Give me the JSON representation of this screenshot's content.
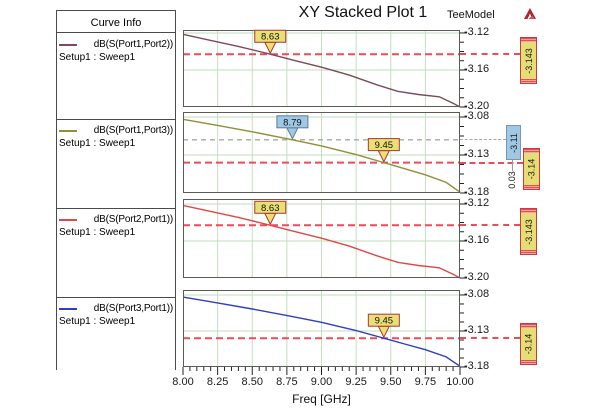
{
  "header": {
    "title": "XY Stacked Plot 1",
    "model_label": "TeeModel",
    "logo_color": "#b2232b"
  },
  "legend": {
    "title": "Curve Info",
    "entries": [
      {
        "label": "dB(S(Port1,Port2))",
        "sublabel": "Setup1 : Sweep1",
        "color": "#7f4a58"
      },
      {
        "label": "dB(S(Port1,Port3))",
        "sublabel": "Setup1 : Sweep1",
        "color": "#90903a"
      },
      {
        "label": "dB(S(Port2,Port1))",
        "sublabel": "Setup1 : Sweep1",
        "color": "#e04848"
      },
      {
        "label": "dB(S(Port3,Port1))",
        "sublabel": "Setup1 : Sweep1",
        "color": "#2e3fc4"
      }
    ]
  },
  "chart_data": {
    "type": "line",
    "title": "XY Stacked Plot 1",
    "xlabel": "Freq [GHz]",
    "x_range": [
      8,
      10
    ],
    "x_ticks": [
      8,
      8.25,
      8.5,
      8.75,
      9,
      9.25,
      9.5,
      9.75,
      10
    ],
    "x_tick_labels": [
      "8.00",
      "8.25",
      "8.50",
      "8.75",
      "9.00",
      "9.25",
      "9.50",
      "9.75",
      "10.00"
    ],
    "x_minor_step": 0.05,
    "grid_on": true,
    "grid_color": "#c2dec2",
    "marker_line_red": "#ee4a5a",
    "marker_line_gray": "#a8a8a8",
    "legend_position": "left",
    "plots": [
      {
        "name": "dB(S(Port1,Port2))",
        "color": "#7f4a58",
        "ylim": [
          -3.1168,
          -3.2
        ],
        "yticks": [
          -3.12,
          -3.16,
          -3.2
        ],
        "ytick_labels": [
          "-3.12",
          "-3.16",
          "-3.20"
        ],
        "x": [
          8.0,
          8.2,
          8.4,
          8.63,
          8.8,
          9.0,
          9.2,
          9.4,
          9.55,
          9.7,
          9.85,
          9.95,
          10.0
        ],
        "y": [
          -3.1215,
          -3.128,
          -3.1345,
          -3.143,
          -3.1495,
          -3.157,
          -3.1655,
          -3.176,
          -3.183,
          -3.1865,
          -3.189,
          -3.196,
          -3.2
        ],
        "markers": [
          {
            "label": "8.63",
            "x": 8.63,
            "y": -3.143,
            "style": "yellow"
          }
        ],
        "hlines": [
          {
            "value": -3.143,
            "style": "red",
            "box_label": "-3.143",
            "box_style": "yellow"
          }
        ]
      },
      {
        "name": "dB(S(Port1,Port3))",
        "color": "#90903a",
        "ylim": [
          -3.0734,
          -3.18
        ],
        "yticks": [
          -3.08,
          -3.13,
          -3.18
        ],
        "ytick_labels": [
          "-3.08",
          "-3.13",
          "-3.18"
        ],
        "x": [
          8.0,
          8.25,
          8.5,
          8.79,
          9.0,
          9.25,
          9.45,
          9.6,
          9.75,
          9.9,
          10.0
        ],
        "y": [
          -3.083,
          -3.091,
          -3.0995,
          -3.11,
          -3.118,
          -3.1295,
          -3.14,
          -3.148,
          -3.156,
          -3.166,
          -3.179
        ],
        "markers": [
          {
            "label": "8.79",
            "x": 8.79,
            "y": -3.11,
            "style": "blue"
          },
          {
            "label": "9.45",
            "x": 9.45,
            "y": -3.14,
            "style": "yellow"
          }
        ],
        "hlines": [
          {
            "value": -3.11,
            "style": "gray",
            "box_label": "-3.11",
            "box_style": "blue"
          },
          {
            "value": -3.14,
            "style": "red",
            "box_label": "-3.14",
            "box_style": "yellow"
          }
        ],
        "delta_label": "0.03"
      },
      {
        "name": "dB(S(Port2,Port1))",
        "color": "#e04848",
        "ylim": [
          -3.1146,
          -3.2
        ],
        "yticks": [
          -3.12,
          -3.16,
          -3.2
        ],
        "ytick_labels": [
          "-3.12",
          "-3.16",
          "-3.20"
        ],
        "x": [
          8.0,
          8.2,
          8.4,
          8.63,
          8.8,
          9.0,
          9.2,
          9.4,
          9.55,
          9.7,
          9.85,
          9.95,
          10.0
        ],
        "y": [
          -3.1215,
          -3.128,
          -3.1345,
          -3.143,
          -3.1495,
          -3.157,
          -3.1655,
          -3.176,
          -3.183,
          -3.1865,
          -3.189,
          -3.196,
          -3.2
        ],
        "markers": [
          {
            "label": "8.63",
            "x": 8.63,
            "y": -3.143,
            "style": "yellow"
          }
        ],
        "hlines": [
          {
            "value": -3.143,
            "style": "red",
            "box_label": "-3.143",
            "box_style": "yellow"
          }
        ]
      },
      {
        "name": "dB(S(Port3,Port1))",
        "color": "#2e3fc4",
        "ylim": [
          -3.0731,
          -3.18
        ],
        "yticks": [
          -3.08,
          -3.13,
          -3.18
        ],
        "ytick_labels": [
          "-3.08",
          "-3.13",
          "-3.18"
        ],
        "x": [
          8.0,
          8.25,
          8.5,
          8.79,
          9.0,
          9.25,
          9.45,
          9.6,
          9.75,
          9.9,
          10.0
        ],
        "y": [
          -3.083,
          -3.091,
          -3.0995,
          -3.11,
          -3.118,
          -3.1295,
          -3.14,
          -3.148,
          -3.156,
          -3.166,
          -3.179
        ],
        "markers": [
          {
            "label": "9.45",
            "x": 9.45,
            "y": -3.14,
            "style": "yellow"
          }
        ],
        "hlines": [
          {
            "value": -3.14,
            "style": "red",
            "box_label": "-3.14",
            "box_style": "yellow"
          }
        ]
      }
    ]
  }
}
